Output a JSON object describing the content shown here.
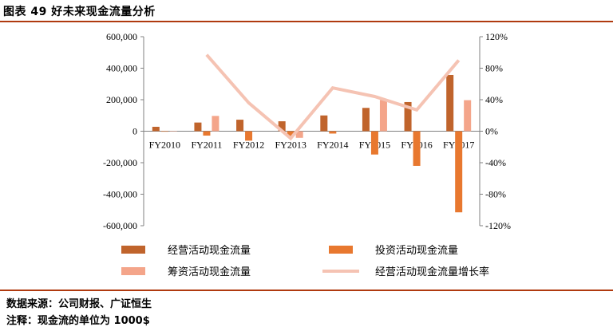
{
  "title": "图表 49 好未来现金流量分析",
  "footer": {
    "source": "数据来源：公司财报、广证恒生",
    "note": "注释：现金流的单位为 1000$"
  },
  "chart_data": {
    "type": "bar",
    "title": "图表 49 好未来现金流量分析",
    "categories": [
      "FY2010",
      "FY2011",
      "FY2012",
      "FY2013",
      "FY2014",
      "FY2015",
      "FY2016",
      "FY2017"
    ],
    "series": [
      {
        "name": "经营活动现金流量",
        "type": "bar",
        "axis": "left",
        "color": "#c0642c",
        "values": [
          28000,
          55000,
          73000,
          63000,
          100000,
          148000,
          185000,
          357000
        ]
      },
      {
        "name": "投资活动现金流量",
        "type": "bar",
        "axis": "left",
        "color": "#e8782f",
        "values": [
          -3000,
          -28000,
          -60000,
          -30000,
          -15000,
          -148000,
          -220000,
          -515000
        ]
      },
      {
        "name": "筹资活动现金流量",
        "type": "bar",
        "axis": "left",
        "color": "#f4a58a",
        "values": [
          -2000,
          97000,
          0,
          -42000,
          0,
          198000,
          0,
          197000
        ]
      },
      {
        "name": "经营活动现金流量增长率",
        "type": "line",
        "axis": "right",
        "color": "#f5c3b3",
        "values": [
          null,
          97,
          36,
          -9,
          55,
          44,
          27,
          90
        ]
      }
    ],
    "yAxisLeft": {
      "min": -600000,
      "max": 600000,
      "step": 200000,
      "ticks": [
        "600,000",
        "400,000",
        "200,000",
        "0",
        "-200,000",
        "-400,000",
        "-600,000"
      ]
    },
    "yAxisRight": {
      "min": -120,
      "max": 120,
      "step": 40,
      "ticks": [
        "120%",
        "80%",
        "40%",
        "0%",
        "-40%",
        "-80%",
        "-120%"
      ]
    },
    "legend_position": "bottom"
  }
}
